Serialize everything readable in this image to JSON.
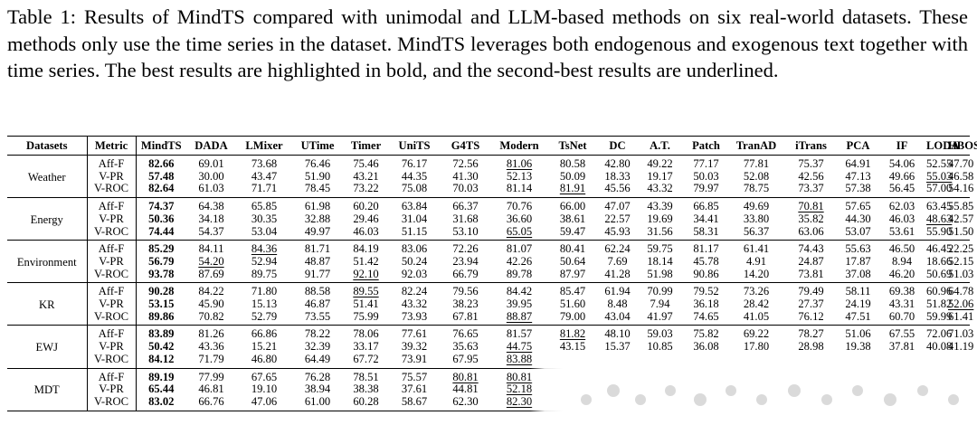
{
  "caption": "Table 1: Results of MindTS compared with unimodal and LLM-based methods on six real-world datasets. These methods only use the time series in the dataset. MindTS leverages both endogenous and exogenous text together with time series.  The best results are highlighted in bold, and the second-best results are underlined.",
  "headers": [
    "Datasets",
    "Metric",
    "MindTS",
    "DADA",
    "LMixer",
    "UTime",
    "Timer",
    "UniTS",
    "G4TS",
    "Modern",
    "TsNet",
    "DC",
    "A.T.",
    "Patch",
    "TranAD",
    "iTrans",
    "PCA",
    "IF",
    "LODA",
    "HBOS"
  ],
  "groups": [
    {
      "name": "Weather",
      "rows": [
        {
          "metric": "Aff-F",
          "values": [
            "82.66",
            "69.01",
            "73.68",
            "76.46",
            "75.46",
            "76.17",
            "72.56",
            "81.06",
            "80.58",
            "42.80",
            "49.22",
            "77.17",
            "77.81",
            "75.37",
            "64.91",
            "54.06",
            "52.55",
            "47.70"
          ],
          "bold": [
            0
          ],
          "underline": [
            7
          ]
        },
        {
          "metric": "V-PR",
          "values": [
            "57.48",
            "30.00",
            "43.47",
            "51.90",
            "43.21",
            "44.35",
            "41.30",
            "52.13",
            "50.09",
            "18.33",
            "19.17",
            "50.03",
            "52.08",
            "42.56",
            "47.13",
            "49.66",
            "55.03",
            "46.58"
          ],
          "bold": [
            0
          ],
          "underline": [
            16
          ]
        },
        {
          "metric": "V-ROC",
          "values": [
            "82.64",
            "61.03",
            "71.71",
            "78.45",
            "73.22",
            "75.08",
            "70.03",
            "81.14",
            "81.91",
            "45.56",
            "43.32",
            "79.97",
            "78.75",
            "73.37",
            "57.38",
            "56.45",
            "57.00",
            "54.16"
          ],
          "bold": [
            0
          ],
          "underline": [
            8
          ]
        }
      ]
    },
    {
      "name": "Energy",
      "rows": [
        {
          "metric": "Aff-F",
          "values": [
            "74.37",
            "64.38",
            "65.85",
            "61.98",
            "60.20",
            "63.84",
            "66.37",
            "70.76",
            "66.00",
            "47.07",
            "43.39",
            "66.85",
            "49.69",
            "70.81",
            "57.65",
            "62.03",
            "63.45",
            "55.85"
          ],
          "bold": [
            0
          ],
          "underline": [
            13
          ]
        },
        {
          "metric": "V-PR",
          "values": [
            "50.36",
            "34.18",
            "30.35",
            "32.88",
            "29.46",
            "31.04",
            "31.68",
            "36.60",
            "38.61",
            "22.57",
            "19.69",
            "34.41",
            "33.80",
            "35.82",
            "44.30",
            "46.03",
            "48.63",
            "42.57"
          ],
          "bold": [
            0
          ],
          "underline": [
            16
          ]
        },
        {
          "metric": "V-ROC",
          "values": [
            "74.44",
            "54.37",
            "53.04",
            "49.97",
            "46.03",
            "51.15",
            "53.10",
            "65.05",
            "59.47",
            "45.93",
            "31.56",
            "58.31",
            "56.37",
            "63.06",
            "53.07",
            "53.61",
            "55.90",
            "51.50"
          ],
          "bold": [
            0
          ],
          "underline": [
            7
          ]
        }
      ]
    },
    {
      "name": "Environment",
      "rows": [
        {
          "metric": "Aff-F",
          "values": [
            "85.29",
            "84.11",
            "84.36",
            "81.71",
            "84.19",
            "83.06",
            "72.26",
            "81.07",
            "80.41",
            "62.24",
            "59.75",
            "81.17",
            "61.41",
            "74.43",
            "55.63",
            "46.50",
            "46.45",
            "22.25"
          ],
          "bold": [
            0
          ],
          "underline": [
            2
          ]
        },
        {
          "metric": "V-PR",
          "values": [
            "56.79",
            "54.20",
            "52.94",
            "48.87",
            "51.42",
            "50.24",
            "23.94",
            "42.26",
            "50.64",
            "7.69",
            "18.14",
            "45.78",
            "4.91",
            "24.87",
            "17.87",
            "8.94",
            "18.66",
            "52.15"
          ],
          "bold": [
            0
          ],
          "underline": [
            1
          ]
        },
        {
          "metric": "V-ROC",
          "values": [
            "93.78",
            "87.69",
            "89.75",
            "91.77",
            "92.10",
            "92.03",
            "66.79",
            "89.78",
            "87.97",
            "41.28",
            "51.98",
            "90.86",
            "14.20",
            "73.81",
            "37.08",
            "46.20",
            "50.69",
            "51.03"
          ],
          "bold": [
            0
          ],
          "underline": [
            4
          ]
        }
      ]
    },
    {
      "name": "KR",
      "rows": [
        {
          "metric": "Aff-F",
          "values": [
            "90.28",
            "84.22",
            "71.80",
            "88.58",
            "89.55",
            "82.24",
            "79.56",
            "84.42",
            "85.47",
            "61.94",
            "70.99",
            "79.52",
            "73.26",
            "79.49",
            "58.11",
            "69.38",
            "60.96",
            "64.78"
          ],
          "bold": [
            0
          ],
          "underline": [
            4
          ]
        },
        {
          "metric": "V-PR",
          "values": [
            "53.15",
            "45.90",
            "15.13",
            "46.87",
            "51.41",
            "43.32",
            "38.23",
            "39.95",
            "51.60",
            "8.48",
            "7.94",
            "36.18",
            "28.42",
            "27.37",
            "24.19",
            "43.31",
            "51.82",
            "52.06"
          ],
          "bold": [
            0
          ],
          "underline": [
            17
          ]
        },
        {
          "metric": "V-ROC",
          "values": [
            "89.86",
            "70.82",
            "52.79",
            "73.55",
            "75.99",
            "73.93",
            "67.81",
            "88.87",
            "79.00",
            "43.04",
            "41.97",
            "74.65",
            "41.05",
            "76.12",
            "47.51",
            "60.70",
            "59.99",
            "61.41"
          ],
          "bold": [
            0
          ],
          "underline": [
            7
          ]
        }
      ]
    },
    {
      "name": "EWJ",
      "rows": [
        {
          "metric": "Aff-F",
          "values": [
            "83.89",
            "81.26",
            "66.86",
            "78.22",
            "78.06",
            "77.61",
            "76.65",
            "81.57",
            "81.82",
            "48.10",
            "59.03",
            "75.82",
            "69.22",
            "78.27",
            "51.06",
            "67.55",
            "72.06",
            "71.03"
          ],
          "bold": [
            0
          ],
          "underline": [
            8
          ]
        },
        {
          "metric": "V-PR",
          "values": [
            "50.42",
            "43.36",
            "15.21",
            "32.39",
            "33.17",
            "39.32",
            "35.63",
            "44.75",
            "43.15",
            "15.37",
            "10.85",
            "36.08",
            "17.80",
            "28.98",
            "19.38",
            "37.81",
            "40.08",
            "41.19"
          ],
          "bold": [
            0
          ],
          "underline": [
            7
          ]
        },
        {
          "metric": "V-ROC",
          "values": [
            "84.12",
            "71.79",
            "46.80",
            "64.49",
            "67.72",
            "73.91",
            "67.95",
            "83.88",
            "",
            "",
            "",
            "",
            "",
            "",
            "",
            "",
            "",
            ""
          ],
          "bold": [
            0
          ],
          "underline": [
            7
          ]
        }
      ]
    },
    {
      "name": "MDT",
      "rows": [
        {
          "metric": "Aff-F",
          "values": [
            "89.19",
            "77.99",
            "67.65",
            "76.28",
            "78.51",
            "75.57",
            "80.81",
            "80.81",
            "",
            "",
            "",
            "",
            "",
            "",
            "",
            "",
            "",
            ""
          ],
          "bold": [
            0
          ],
          "underline": [
            6,
            7
          ]
        },
        {
          "metric": "V-PR",
          "values": [
            "65.44",
            "46.81",
            "19.10",
            "38.94",
            "38.38",
            "37.61",
            "44.81",
            "52.18",
            "",
            "",
            "",
            "",
            "",
            "",
            "",
            "",
            "",
            ""
          ],
          "bold": [
            0
          ],
          "underline": [
            7
          ]
        },
        {
          "metric": "V-ROC",
          "values": [
            "83.02",
            "66.76",
            "47.06",
            "61.00",
            "60.28",
            "58.67",
            "62.30",
            "82.30",
            "",
            "",
            "",
            "",
            "",
            "",
            "",
            "",
            "",
            ""
          ],
          "bold": [
            0
          ],
          "underline": [
            7
          ]
        }
      ]
    }
  ],
  "colors": {
    "text": "#000000",
    "background": "#ffffff",
    "watermark": "#dadada"
  }
}
